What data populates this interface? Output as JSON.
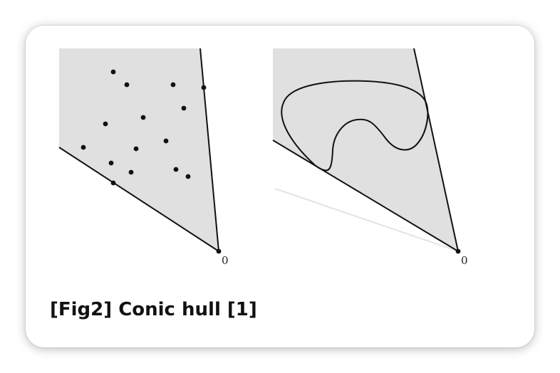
{
  "caption": "[Fig2] Conic hull [1]",
  "panels": {
    "left": {
      "origin_label": "0"
    },
    "right": {
      "origin_label": "0"
    }
  },
  "colors": {
    "cone_fill": "#e0e0e0",
    "line": "#111111",
    "faint_ray": "#e4e4e4",
    "card_background": "#ffffff"
  }
}
